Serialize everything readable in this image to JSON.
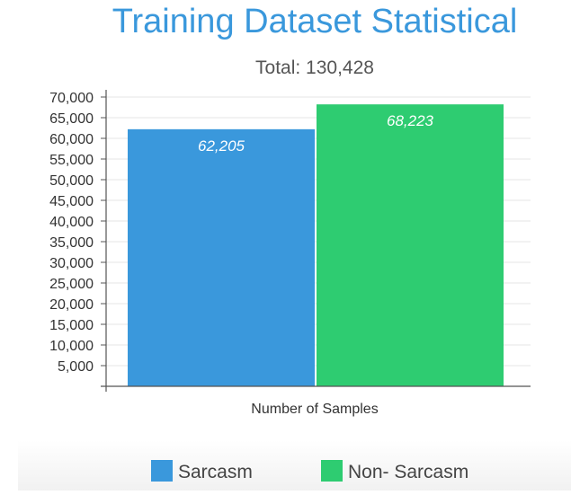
{
  "chart_data": {
    "type": "bar",
    "title": "Training Dataset Statistical",
    "subtitle": "Total: 130,428",
    "xlabel": "Number of Samples",
    "ylabel": "",
    "categories": [
      "Number of Samples"
    ],
    "series": [
      {
        "name": "Sarcasm",
        "values": [
          62205
        ],
        "label": "62,205",
        "color": "#3a98dc"
      },
      {
        "name": "Non- Sarcasm",
        "values": [
          68223
        ],
        "label": "68,223",
        "color": "#2ecc71"
      }
    ],
    "ylim": [
      0,
      70000
    ],
    "yticks": [
      "5,000",
      "10,000",
      "15,000",
      "20,000",
      "25,000",
      "30,000",
      "35,000",
      "40,000",
      "45,000",
      "50,000",
      "55,000",
      "60,000",
      "65,000",
      "70,000"
    ],
    "ytick_values": [
      5000,
      10000,
      15000,
      20000,
      25000,
      30000,
      35000,
      40000,
      45000,
      50000,
      55000,
      60000,
      65000,
      70000
    ],
    "grid": true,
    "legend_position": "bottom-center",
    "colors": {
      "title": "#3a98dc",
      "text": "#444444",
      "axis": "#555555",
      "grid": "#e6e6e6"
    }
  }
}
